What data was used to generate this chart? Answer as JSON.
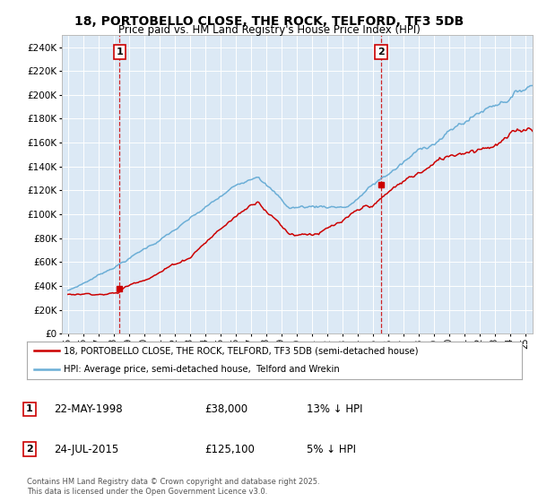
{
  "title": "18, PORTOBELLO CLOSE, THE ROCK, TELFORD, TF3 5DB",
  "subtitle": "Price paid vs. HM Land Registry's House Price Index (HPI)",
  "ylim": [
    0,
    250000
  ],
  "ytick_vals": [
    0,
    20000,
    40000,
    60000,
    80000,
    100000,
    120000,
    140000,
    160000,
    180000,
    200000,
    220000,
    240000
  ],
  "xlim_start": 1994.6,
  "xlim_end": 2025.5,
  "sale1_date": 1998.39,
  "sale1_price": 38000,
  "sale2_date": 2015.56,
  "sale2_price": 125100,
  "bg_color": "#dce9f5",
  "red_color": "#cc0000",
  "blue_color": "#6baed6",
  "grid_color": "#ffffff",
  "legend_label_red": "18, PORTOBELLO CLOSE, THE ROCK, TELFORD, TF3 5DB (semi-detached house)",
  "legend_label_blue": "HPI: Average price, semi-detached house,  Telford and Wrekin",
  "table_row1": [
    "1",
    "22-MAY-1998",
    "£38,000",
    "13% ↓ HPI"
  ],
  "table_row2": [
    "2",
    "24-JUL-2015",
    "£125,100",
    "5% ↓ HPI"
  ],
  "footnote": "Contains HM Land Registry data © Crown copyright and database right 2025.\nThis data is licensed under the Open Government Licence v3.0."
}
